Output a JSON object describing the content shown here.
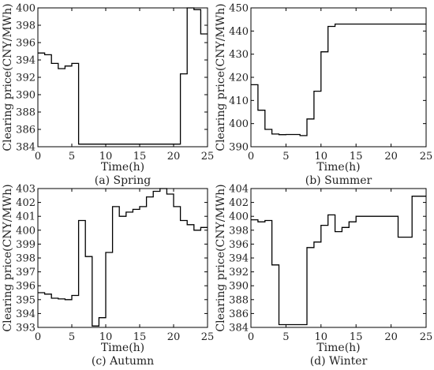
{
  "chart_data": [
    {
      "type": "line",
      "step": true,
      "caption": "(a) Spring",
      "xlabel": "Time(h)",
      "ylabel": "Clearing price(CNY/MWh)",
      "xlim": [
        0,
        25
      ],
      "ylim": [
        384,
        400
      ],
      "xticks": [
        "0",
        "5",
        "10",
        "15",
        "20",
        "25"
      ],
      "yticks": [
        "384",
        "386",
        "388",
        "390",
        "392",
        "394",
        "396",
        "398",
        "400"
      ],
      "grid": false,
      "series": [
        {
          "x": [
            0,
            1,
            2,
            3,
            4,
            5,
            6,
            7,
            8,
            9,
            10,
            11,
            12,
            13,
            14,
            15,
            16,
            17,
            18,
            19,
            20,
            21,
            22,
            23,
            24
          ],
          "values": [
            394.8,
            394.6,
            393.6,
            393.0,
            393.3,
            393.6,
            384.3,
            384.3,
            384.3,
            384.3,
            384.3,
            384.3,
            384.3,
            384.3,
            384.3,
            384.3,
            384.3,
            384.3,
            384.3,
            384.3,
            384.3,
            392.4,
            400,
            399.8,
            397.0
          ]
        }
      ]
    },
    {
      "type": "line",
      "step": true,
      "caption": "(b) Summer",
      "xlabel": "Time(h)",
      "ylabel": "Clearing price(CNY/MWh)",
      "xlim": [
        0,
        25
      ],
      "ylim": [
        390,
        450
      ],
      "xticks": [
        "0",
        "5",
        "10",
        "15",
        "20",
        "25"
      ],
      "yticks": [
        "390",
        "400",
        "410",
        "420",
        "430",
        "440",
        "450"
      ],
      "grid": false,
      "series": [
        {
          "x": [
            0,
            1,
            2,
            3,
            4,
            5,
            6,
            7,
            8,
            9,
            10,
            11,
            12,
            13,
            14,
            15,
            16,
            17,
            18,
            19,
            20,
            21,
            22,
            23,
            24
          ],
          "values": [
            416.8,
            405.8,
            397.5,
            395.5,
            395.2,
            395.3,
            395.3,
            394.8,
            402.0,
            414.0,
            431.0,
            442.0,
            443.0,
            443.0,
            443.0,
            443.0,
            443.0,
            443.0,
            443.0,
            443.0,
            443.0,
            443.0,
            443.0,
            443.0,
            443.0
          ]
        }
      ]
    },
    {
      "type": "line",
      "step": true,
      "caption": "(c)  Autumn",
      "xlabel": "Time(h)",
      "ylabel": "Clearing price(CNY/MWh)",
      "xlim": [
        0,
        25
      ],
      "ylim": [
        393,
        403
      ],
      "xticks": [
        "0",
        "5",
        "10",
        "15",
        "20",
        "25"
      ],
      "yticks": [
        "393",
        "394",
        "395",
        "396",
        "397",
        "398",
        "399",
        "400",
        "401",
        "402",
        "403"
      ],
      "grid": false,
      "series": [
        {
          "x": [
            0,
            1,
            2,
            3,
            4,
            5,
            6,
            7,
            8,
            9,
            10,
            11,
            12,
            13,
            14,
            15,
            16,
            17,
            18,
            19,
            20,
            21,
            22,
            23,
            24
          ],
          "values": [
            395.5,
            395.4,
            395.1,
            395.05,
            395.0,
            395.3,
            400.7,
            398.1,
            393.1,
            393.7,
            398.4,
            401.7,
            401.0,
            401.3,
            401.5,
            401.7,
            402.4,
            402.8,
            403.0,
            402.6,
            401.7,
            400.7,
            400.4,
            400.0,
            400.2
          ]
        }
      ]
    },
    {
      "type": "line",
      "step": true,
      "caption": "(d) Winter",
      "xlabel": "Time(h)",
      "ylabel": "Clearing price(CNY/MWh)",
      "xlim": [
        0,
        25
      ],
      "ylim": [
        384,
        404
      ],
      "xticks": [
        "0",
        "5",
        "10",
        "15",
        "20",
        "25"
      ],
      "yticks": [
        "384",
        "386",
        "388",
        "390",
        "392",
        "394",
        "396",
        "398",
        "400",
        "402",
        "404"
      ],
      "grid": false,
      "series": [
        {
          "x": [
            0,
            1,
            2,
            3,
            4,
            5,
            6,
            7,
            8,
            9,
            10,
            11,
            12,
            13,
            14,
            15,
            16,
            17,
            18,
            19,
            20,
            21,
            22,
            23,
            24
          ],
          "values": [
            399.5,
            399.2,
            399.4,
            393.0,
            384.4,
            384.4,
            384.4,
            384.4,
            395.5,
            396.3,
            398.7,
            400.2,
            397.8,
            398.4,
            399.2,
            400.0,
            400.0,
            400.0,
            400.0,
            400.0,
            400.0,
            397.0,
            397.0,
            402.9,
            402.9
          ]
        }
      ]
    }
  ]
}
